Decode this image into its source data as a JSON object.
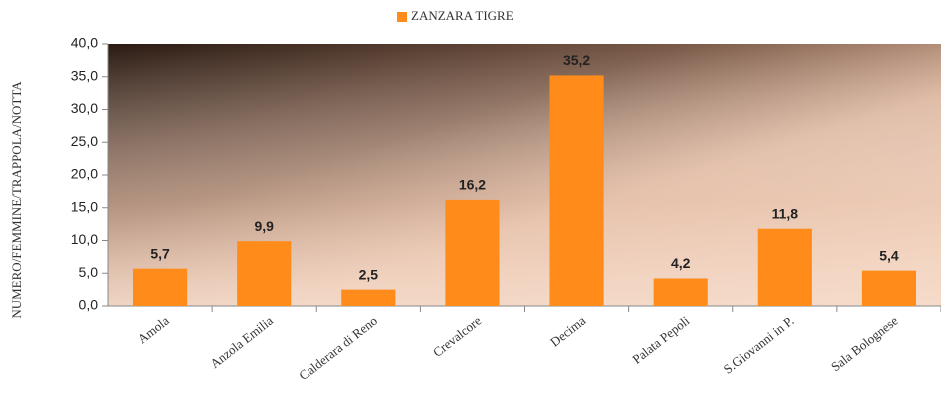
{
  "chart_data": {
    "type": "bar",
    "y_label": "NUMERO/FEMMINE/TRAPPOLA/NOTTA",
    "categories": [
      "Amola",
      "Anzola Emilia",
      "Calderara di Reno",
      "Crevalcore",
      "Decima",
      "Palata Pepoli",
      "S.Giovanni in P.",
      "Sala Bolognese"
    ],
    "series": [
      {
        "name": "ZANZARA TIGRE",
        "color": "#ff8c1a",
        "values": [
          5.7,
          9.9,
          2.5,
          16.2,
          35.2,
          4.2,
          11.8,
          5.4
        ],
        "value_labels": [
          "5,7",
          "9,9",
          "2,5",
          "16,2",
          "35,2",
          "4,2",
          "11,8",
          "5,4"
        ]
      }
    ],
    "ylim": [
      0,
      40
    ],
    "yticks": [
      {
        "value": 0,
        "label": "0,0"
      },
      {
        "value": 5,
        "label": "5,0"
      },
      {
        "value": 10,
        "label": "10,0"
      },
      {
        "value": 15,
        "label": "15,0"
      },
      {
        "value": 20,
        "label": "20,0"
      },
      {
        "value": 25,
        "label": "25,0"
      },
      {
        "value": 30,
        "label": "30,0"
      },
      {
        "value": 35,
        "label": "35,0"
      },
      {
        "value": 40,
        "label": "40,0"
      }
    ],
    "legend": "top"
  }
}
